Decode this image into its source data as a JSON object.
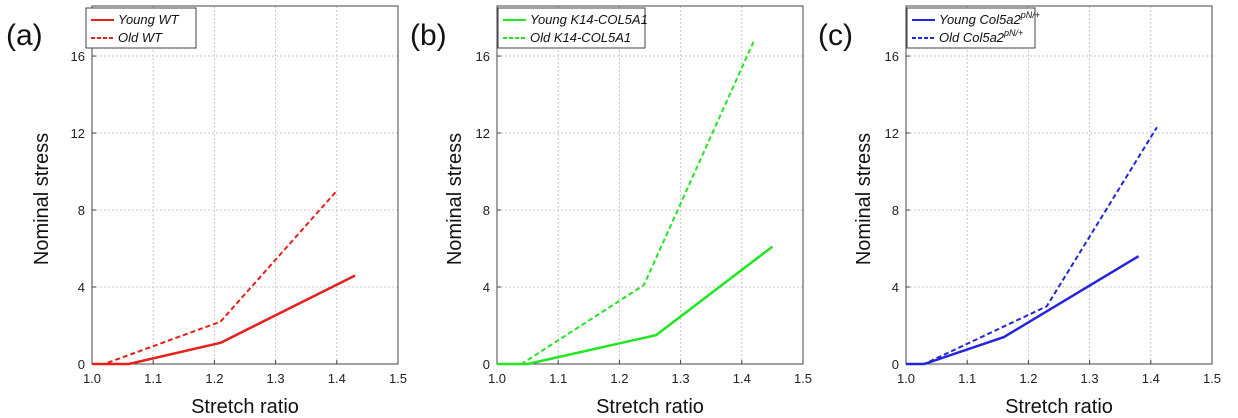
{
  "chart_data": [
    {
      "type": "line",
      "panel_label": "(a)",
      "xlabel": "Stretch ratio",
      "ylabel": "Nominal stress",
      "xlim": [
        1.0,
        1.5
      ],
      "ylim": [
        0,
        18.6
      ],
      "xticks": [
        "1.0",
        "1.1",
        "1.2",
        "1.3",
        "1.4",
        "1.5"
      ],
      "yticks": [
        "0",
        "4",
        "8",
        "12",
        "16"
      ],
      "grid": true,
      "legend_position": "top-left",
      "series": [
        {
          "name": "Young WT",
          "color": "#e8201c",
          "style": "solid",
          "points": [
            [
              1.0,
              0
            ],
            [
              1.06,
              0
            ],
            [
              1.21,
              1.1
            ],
            [
              1.43,
              4.6
            ]
          ]
        },
        {
          "name": "Old WT",
          "color": "#e8201c",
          "style": "dashed",
          "points": [
            [
              1.0,
              0
            ],
            [
              1.02,
              0
            ],
            [
              1.21,
              2.2
            ],
            [
              1.4,
              9.0
            ]
          ]
        }
      ]
    },
    {
      "type": "line",
      "panel_label": "(b)",
      "xlabel": "Stretch ratio",
      "ylabel": "Nominal stress",
      "xlim": [
        1.0,
        1.5
      ],
      "ylim": [
        0,
        18.6
      ],
      "xticks": [
        "1.0",
        "1.1",
        "1.2",
        "1.3",
        "1.4",
        "1.5"
      ],
      "yticks": [
        "0",
        "4",
        "8",
        "12",
        "16"
      ],
      "grid": true,
      "legend_position": "top-left",
      "series": [
        {
          "name": "Young K14-COL5A1",
          "color": "#22e622",
          "style": "solid",
          "points": [
            [
              1.0,
              0
            ],
            [
              1.05,
              0
            ],
            [
              1.26,
              1.5
            ],
            [
              1.45,
              6.1
            ]
          ]
        },
        {
          "name": "Old K14-COL5A1",
          "color": "#22e622",
          "style": "dashed",
          "points": [
            [
              1.0,
              0
            ],
            [
              1.04,
              0
            ],
            [
              1.24,
              4.1
            ],
            [
              1.42,
              16.8
            ]
          ]
        }
      ]
    },
    {
      "type": "line",
      "panel_label": "(c)",
      "xlabel": "Stretch ratio",
      "ylabel": "Nominal stress",
      "xlim": [
        1.0,
        1.5
      ],
      "ylim": [
        0,
        18.6
      ],
      "xticks": [
        "1.0",
        "1.1",
        "1.2",
        "1.3",
        "1.4",
        "1.5"
      ],
      "yticks": [
        "0",
        "4",
        "8",
        "12",
        "16"
      ],
      "grid": true,
      "legend_position": "top-left",
      "series": [
        {
          "name": "Young Col5a2",
          "name_superscript": "pN/+",
          "color": "#2424dc",
          "style": "solid",
          "points": [
            [
              1.0,
              0
            ],
            [
              1.03,
              0
            ],
            [
              1.16,
              1.4
            ],
            [
              1.38,
              5.6
            ]
          ]
        },
        {
          "name": "Old Col5a2",
          "name_superscript": "pN/+",
          "color": "#2424dc",
          "style": "dashed",
          "points": [
            [
              1.0,
              0
            ],
            [
              1.03,
              0
            ],
            [
              1.23,
              3.0
            ],
            [
              1.41,
              12.3
            ]
          ]
        }
      ]
    }
  ]
}
